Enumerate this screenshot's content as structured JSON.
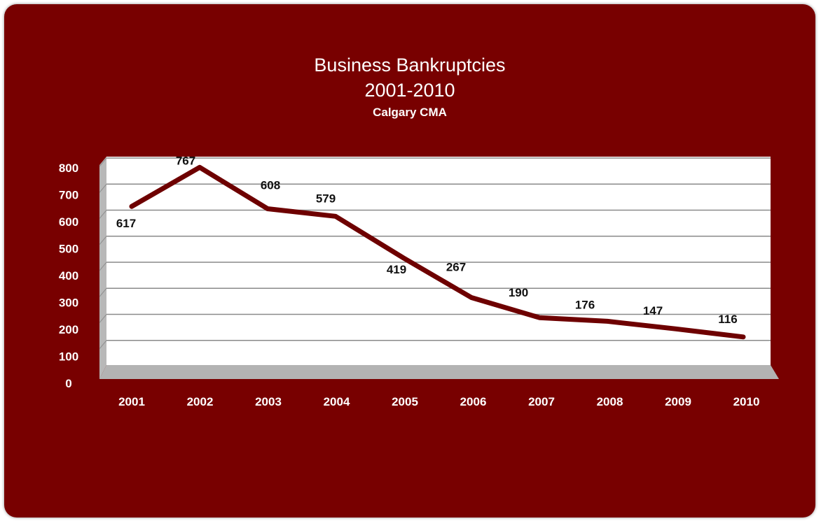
{
  "chart_data": {
    "type": "line",
    "title": "Business Bankruptcies",
    "subtitle": "2001-2010",
    "subtitle2": "Calgary CMA",
    "xlabel": "",
    "ylabel": "",
    "categories": [
      "2001",
      "2002",
      "2003",
      "2004",
      "2005",
      "2006",
      "2007",
      "2008",
      "2009",
      "2010"
    ],
    "values": [
      617,
      767,
      608,
      579,
      419,
      267,
      190,
      176,
      147,
      116
    ],
    "yticks": [
      "0",
      "100",
      "200",
      "300",
      "400",
      "500",
      "600",
      "700",
      "800"
    ],
    "ylim": [
      0,
      800
    ],
    "grid": true,
    "legend": "none",
    "colors": {
      "background": "#780000",
      "line": "#6e0000",
      "plot": "#ffffff",
      "gridline": "#8a8a8a",
      "text_light": "#ffffff",
      "text_dark": "#111111"
    }
  }
}
